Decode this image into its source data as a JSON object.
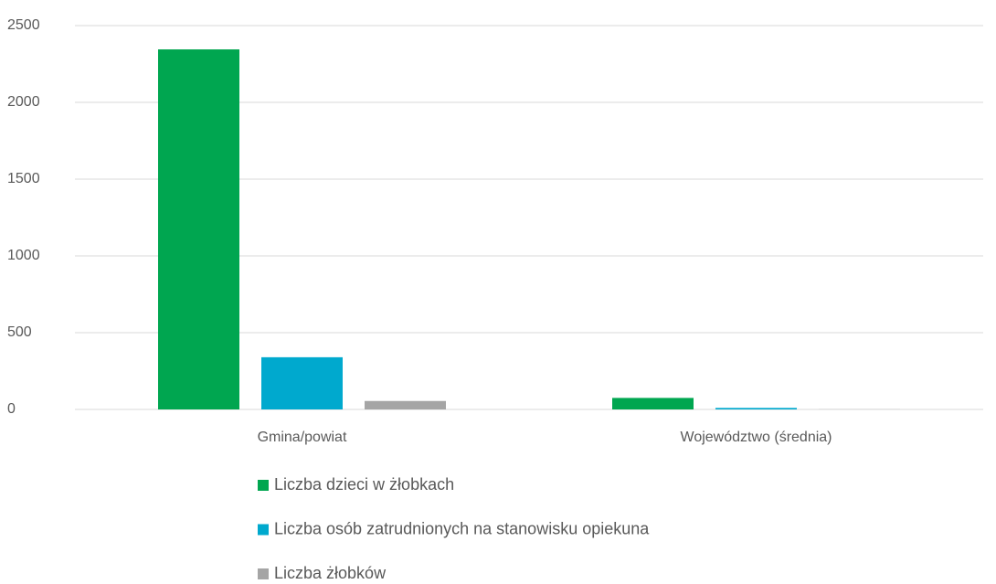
{
  "chart_data": {
    "type": "bar",
    "categories": [
      "Gmina/powiat",
      "Województwo (średnia)"
    ],
    "series": [
      {
        "name": "Liczba dzieci w żłobkach",
        "color": "#00a650",
        "values": [
          2345,
          75
        ]
      },
      {
        "name": "Liczba osób zatrudnionych na stanowisku opiekuna",
        "color": "#00a9ce",
        "values": [
          340,
          10
        ]
      },
      {
        "name": "Liczba żłobków",
        "color": "#a5a5a5",
        "values": [
          55,
          1
        ]
      }
    ],
    "ylim": [
      0,
      2500
    ],
    "yticks": [
      0,
      500,
      1000,
      1500,
      2000,
      2500
    ],
    "grid": true,
    "legend": "bottom"
  }
}
